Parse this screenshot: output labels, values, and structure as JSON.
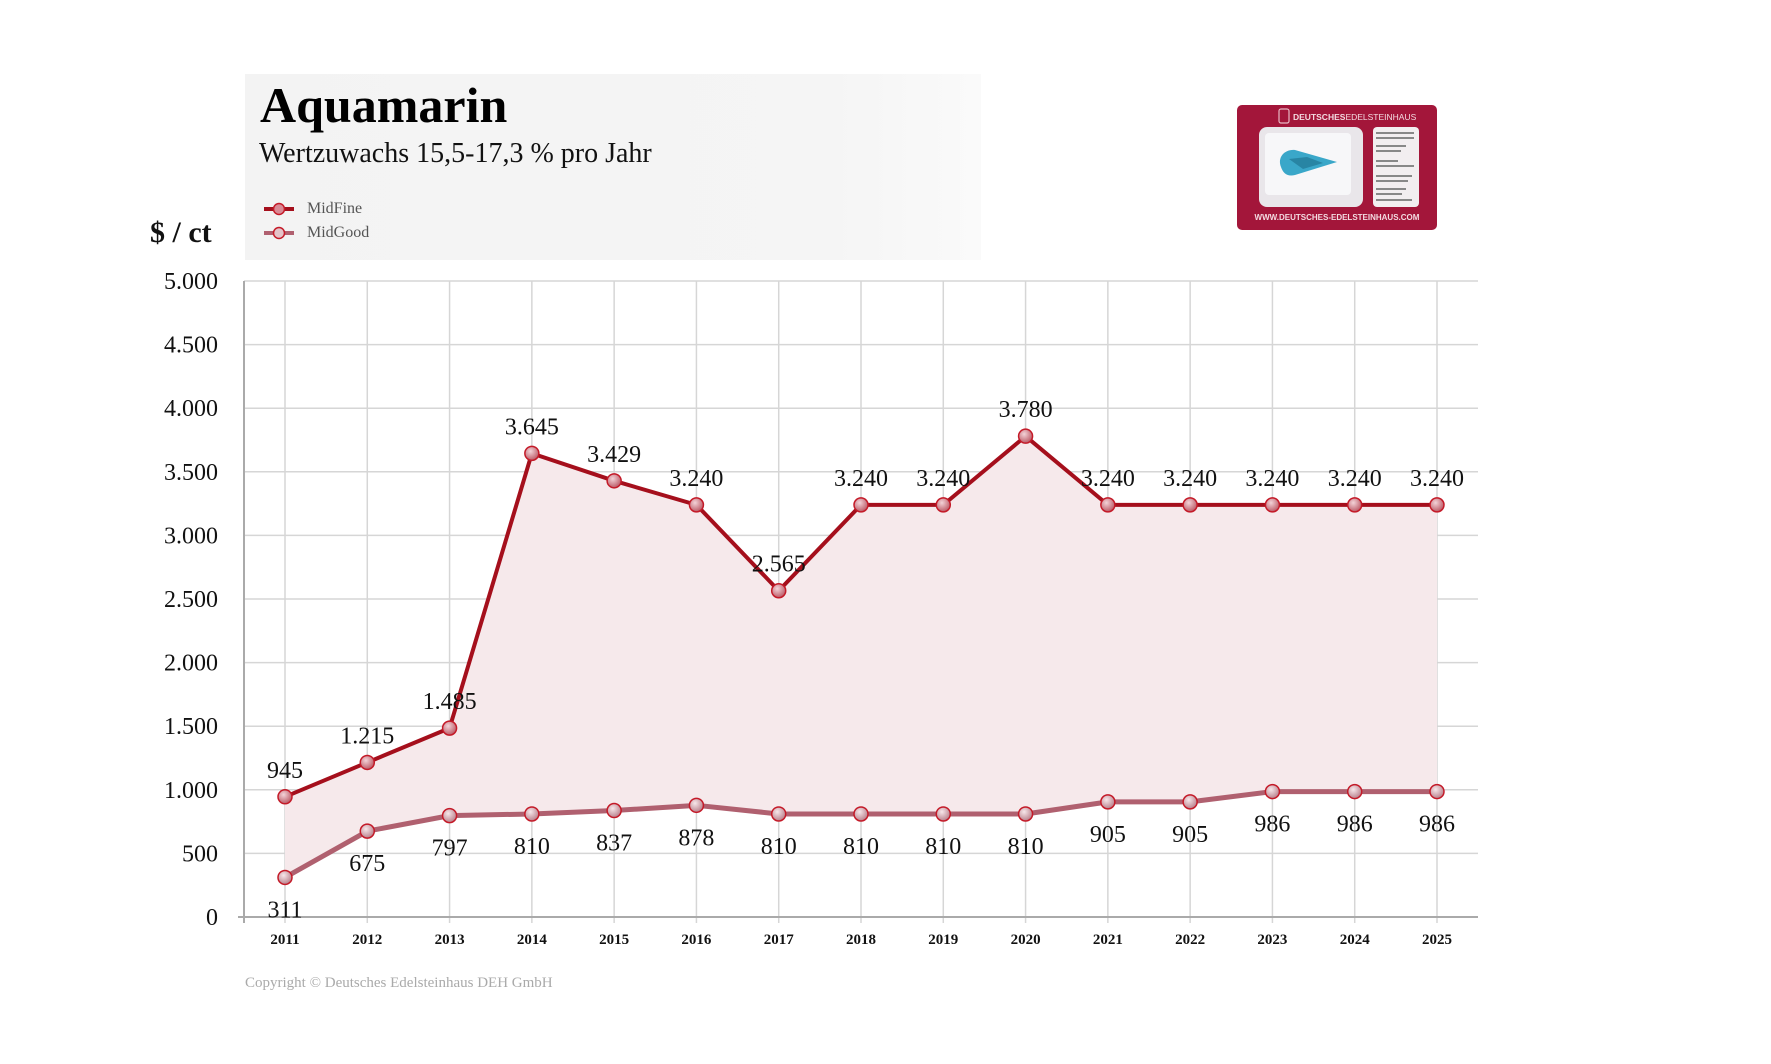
{
  "chart_data": {
    "type": "line",
    "title": "Aquamarin",
    "subtitle": "Wertzuwachs 15,5-17,3 % pro Jahr",
    "ylabel": "$ / ct",
    "xlabel": "",
    "ylim": [
      0,
      5000
    ],
    "yticks": [
      0,
      500,
      1000,
      1500,
      2000,
      2500,
      3000,
      3500,
      4000,
      4500,
      5000
    ],
    "ytick_labels": [
      "0",
      "500",
      "1.000",
      "1.500",
      "2.000",
      "2.500",
      "3.000",
      "3.500",
      "4.000",
      "4.500",
      "5.000"
    ],
    "categories": [
      "2011",
      "2012",
      "2013",
      "2014",
      "2015",
      "2016",
      "2017",
      "2018",
      "2019",
      "2020",
      "2021",
      "2022",
      "2023",
      "2024",
      "2025"
    ],
    "grid": true,
    "legend_placement": "top-left",
    "series": [
      {
        "name": "MidFine",
        "color": "#a50f1c",
        "values": [
          945,
          1215,
          1485,
          3645,
          3429,
          3240,
          2565,
          3240,
          3240,
          3780,
          3240,
          3240,
          3240,
          3240,
          3240
        ],
        "labels": [
          "945",
          "1.215",
          "1.485",
          "3.645",
          "3.429",
          "3.240",
          "2.565",
          "3.240",
          "3.240",
          "3.780",
          "3.240",
          "3.240",
          "3.240",
          "3.240",
          "3.240"
        ]
      },
      {
        "name": "MidGood",
        "color": "#b0606f",
        "values": [
          311,
          675,
          797,
          810,
          837,
          878,
          810,
          810,
          810,
          810,
          905,
          905,
          986,
          986,
          986
        ],
        "labels": [
          "311",
          "675",
          "797",
          "810",
          "837",
          "878",
          "810",
          "810",
          "810",
          "810",
          "905",
          "905",
          "986",
          "986",
          "986"
        ]
      }
    ],
    "fill_between_color": "#f6e9eb"
  },
  "copyright": "Copyright © Deutsches Edelsteinhaus DEH GmbH",
  "logo": {
    "brand": "DEUTSCHESEDELSTEINHAUS",
    "url": "WWW.DEUTSCHES-EDELSTEINHAUS.COM",
    "card_color": "#a3163a",
    "gem_color": "#3aa7c9"
  }
}
